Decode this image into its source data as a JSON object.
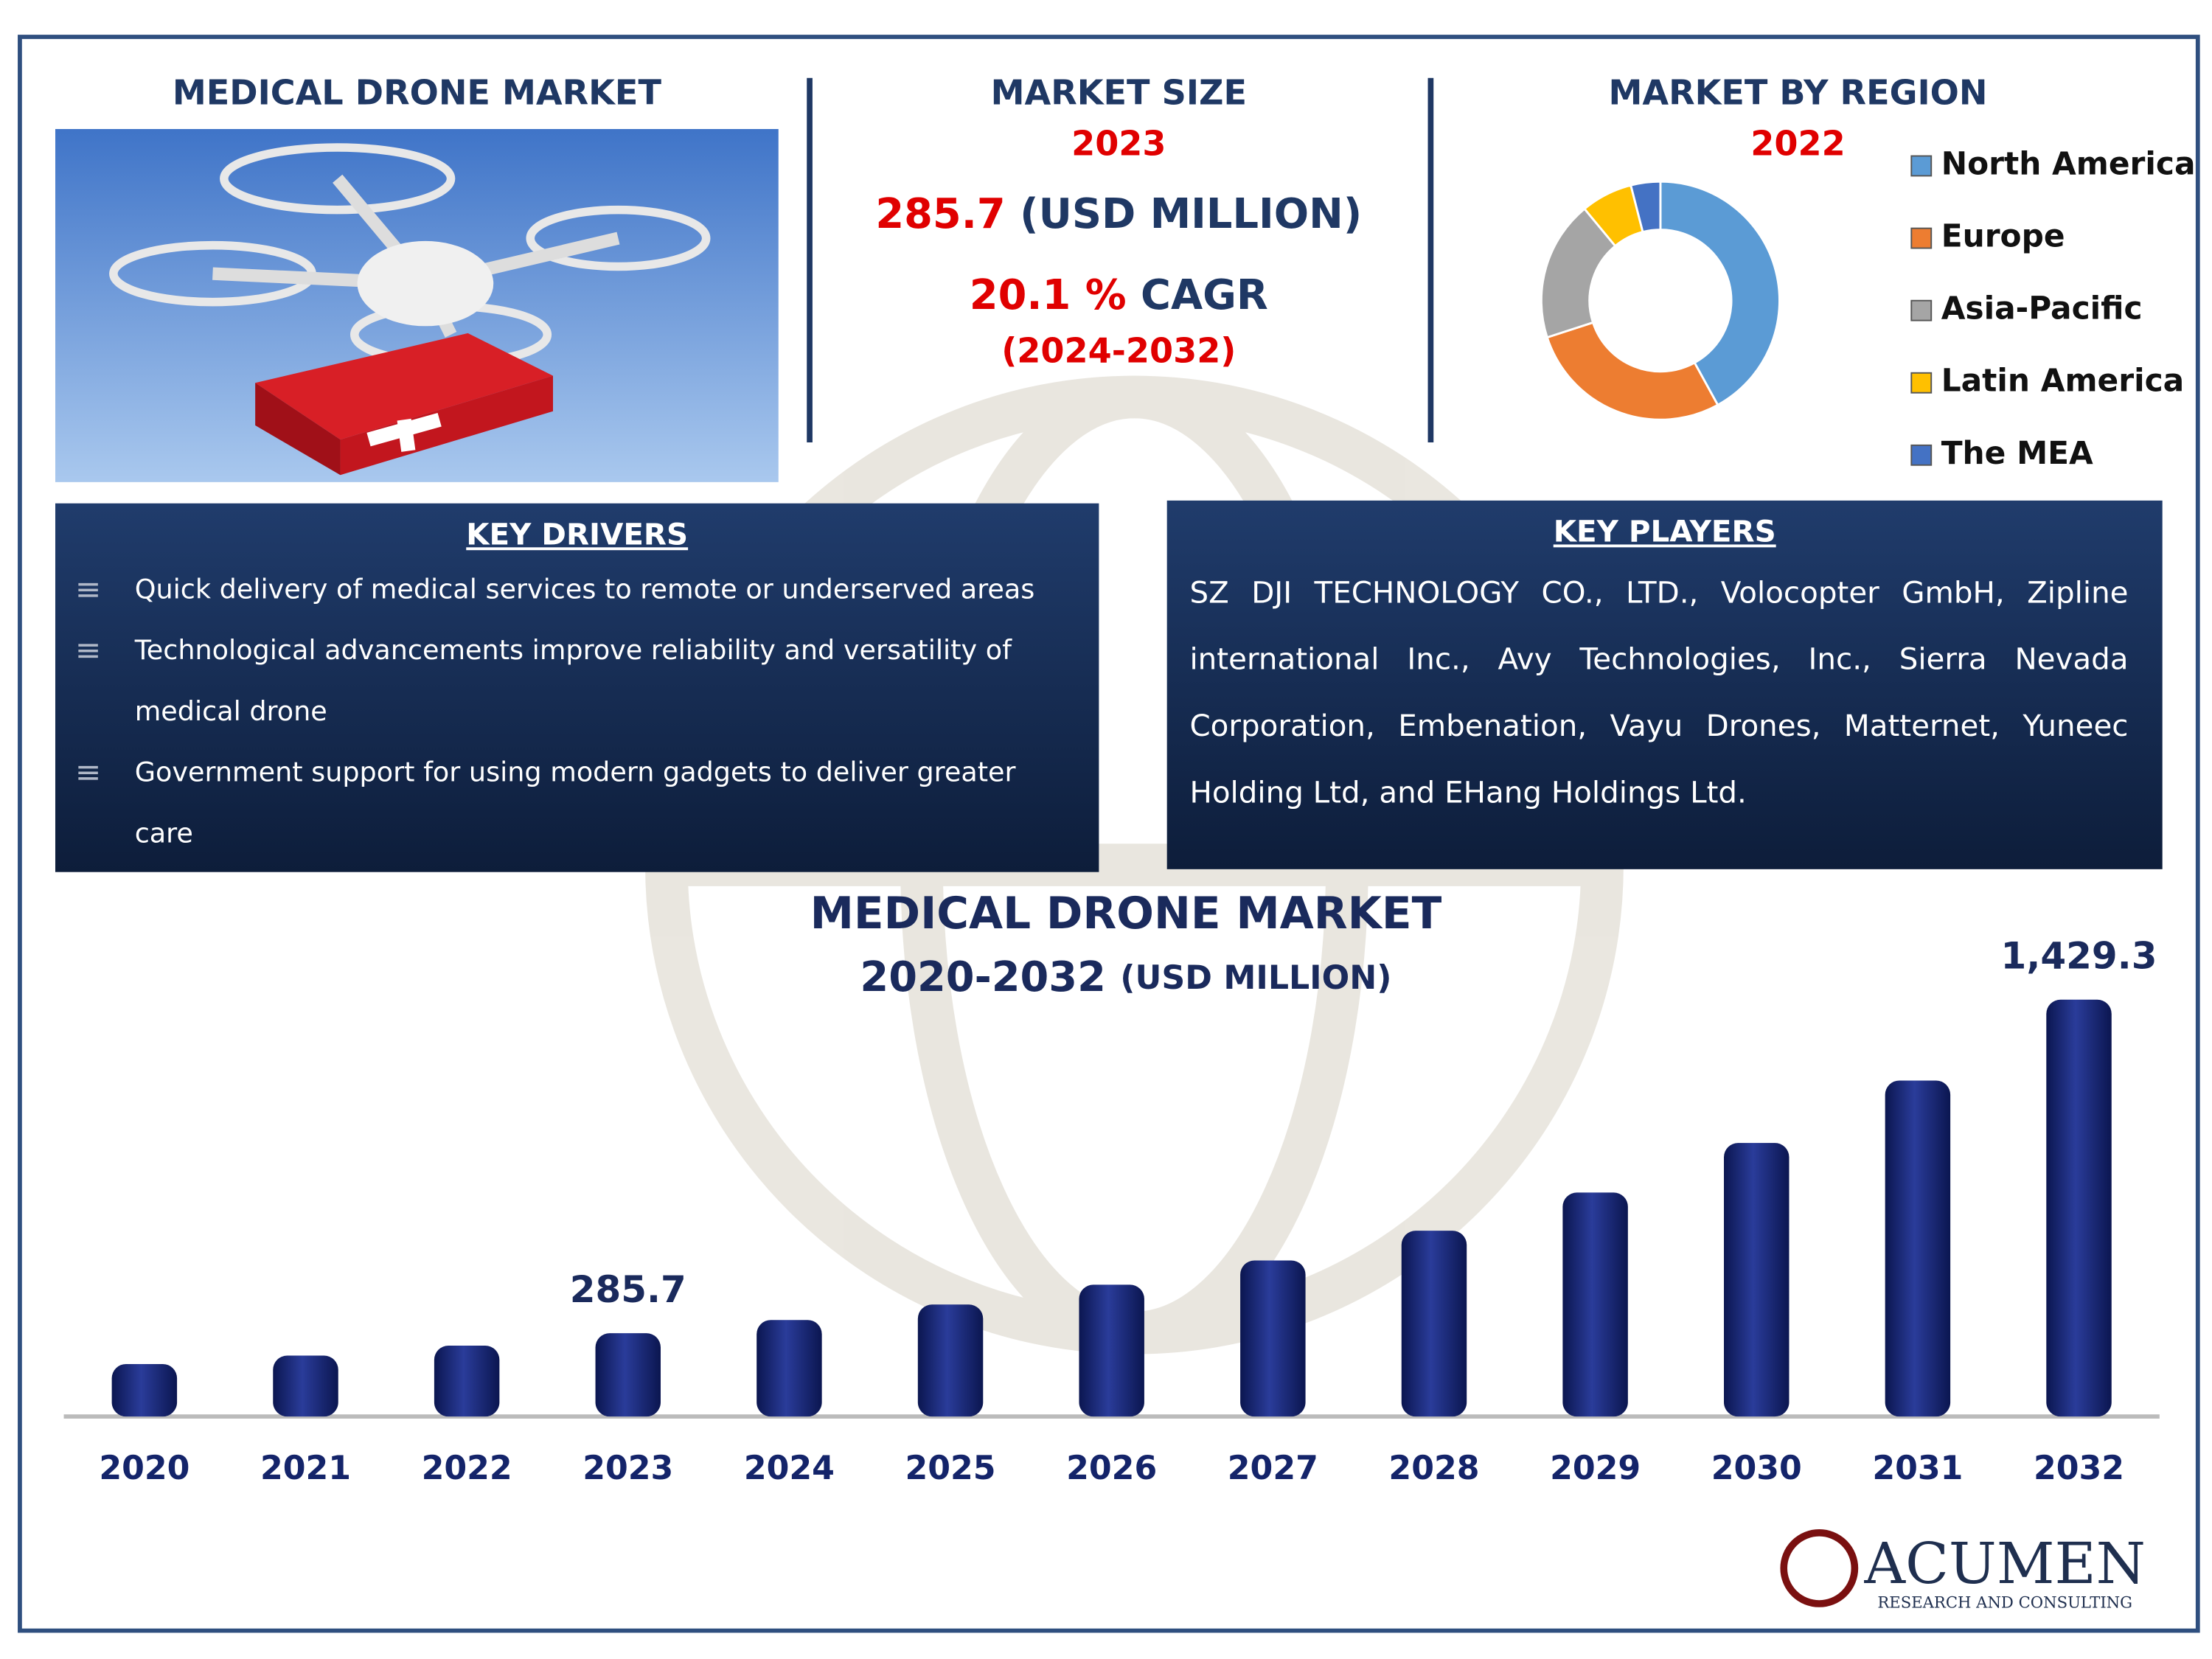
{
  "left_panel": {
    "title": "MEDICAL DRONE MARKET"
  },
  "market_size": {
    "title": "MARKET SIZE",
    "year": "2023",
    "value": "285.7",
    "unit": "(USD MILLION)",
    "cagr_value": "20.1 %",
    "cagr_label": "CAGR",
    "period": "(2024-2032)"
  },
  "key_drivers": {
    "title": "KEY DRIVERS",
    "items": [
      "Quick delivery of medical services to remote or underserved areas",
      "Technological advancements improve reliability and versatility of medical drone",
      "Government support for using modern gadgets to deliver greater care"
    ]
  },
  "key_players": {
    "title": "KEY PLAYERS",
    "text": "SZ DJI TECHNOLOGY CO., LTD., Volocopter GmbH, Zipline international Inc., Avy Technologies, Inc., Sierra Nevada Corporation, Embenation, Vayu Drones, Matternet, Yuneec Holding Ltd, and EHang Holdings Ltd."
  },
  "logo": {
    "name": "ACUMEN",
    "tagline": "RESEARCH AND CONSULTING"
  },
  "chart_data": [
    {
      "type": "donut",
      "title": "MARKET BY REGION",
      "subtitle": "2022",
      "categories": [
        "North America",
        "Europe",
        "Asia-Pacific",
        "Latin America",
        "The MEA"
      ],
      "values": [
        42,
        28,
        19,
        7,
        4
      ],
      "colors": [
        "#5b9bd5",
        "#ed7d31",
        "#a5a5a5",
        "#ffc000",
        "#4472c4"
      ]
    },
    {
      "type": "bar",
      "title": "MEDICAL DRONE MARKET",
      "subtitle": "2020-2032",
      "unit": "(USD MILLION)",
      "categories": [
        "2020",
        "2021",
        "2022",
        "2023",
        "2024",
        "2025",
        "2026",
        "2027",
        "2028",
        "2029",
        "2030",
        "2031",
        "2032"
      ],
      "values": [
        180,
        209,
        243,
        285.7,
        331,
        384,
        452,
        535,
        637,
        768,
        938,
        1152,
        1429.3
      ],
      "value_labels": [
        null,
        null,
        null,
        "285.7",
        null,
        null,
        null,
        null,
        null,
        null,
        null,
        null,
        "1,429.3"
      ],
      "color": "#14246a"
    }
  ]
}
